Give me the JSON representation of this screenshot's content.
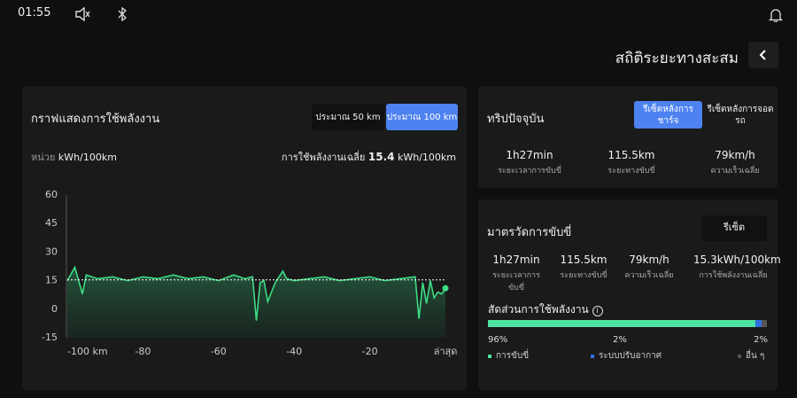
{
  "status_bar": {
    "time": "01:55"
  },
  "header": {
    "title": "สถิติระยะทางสะสม"
  },
  "chart_data": {
    "type": "line",
    "title": "กราฟแสดงการใช้พลังงาน",
    "range_options": [
      "ประมาณ 50 km",
      "ประมาณ 100 km"
    ],
    "unit_label": "หน่วย",
    "unit": "kWh/100km",
    "average_label": "การใช้พลังงานเฉลี่ย",
    "average": 15.4,
    "average_unit": "kWh/100km",
    "x": [
      -100,
      -98,
      -96,
      -95,
      -92,
      -88,
      -84,
      -80,
      -76,
      -72,
      -68,
      -64,
      -60,
      -56,
      -53,
      -51,
      -50,
      -49,
      -48,
      -47,
      -45,
      -43,
      -42,
      -40,
      -36,
      -32,
      -28,
      -24,
      -20,
      -16,
      -12,
      -8,
      -7,
      -6,
      -5,
      -4,
      -3,
      -2,
      -1,
      0
    ],
    "series": [
      {
        "color": "#3ddc84",
        "values": [
          15,
          22,
          8,
          18,
          16,
          17,
          15,
          17,
          16,
          18,
          16,
          17,
          15,
          18,
          16,
          17,
          -6,
          14,
          15,
          4,
          14,
          20,
          16,
          15,
          16,
          17,
          15,
          16,
          17,
          15,
          16,
          17,
          -5,
          14,
          3,
          15,
          6,
          9,
          8,
          11
        ]
      }
    ],
    "xlim": [
      -100,
      0
    ],
    "xticks": [
      {
        "value": -100,
        "label": "-100 km"
      },
      -80,
      -60,
      -40,
      -20,
      {
        "value": 0,
        "label": "ล่าสุด"
      }
    ],
    "ylim": [
      -15,
      60
    ],
    "yticks": [
      60,
      45,
      30,
      15,
      0,
      -15
    ]
  },
  "current_trip": {
    "title": "ทริปปัจจุบัน",
    "buttons": [
      "รีเซ็ตหลังการชาร์จ",
      "รีเซ็ตหลังการจอดรถ"
    ],
    "stats": [
      {
        "value": "1h27min",
        "label": "ระยะเวลาการขับขี่"
      },
      {
        "value": "115.5km",
        "label": "ระยะทางขับขี่"
      },
      {
        "value": "79km/h",
        "label": "ความเร็วเฉลี่ย"
      }
    ]
  },
  "driving_meter": {
    "title": "มาตรวัดการขับขี่",
    "button": "รีเซ็ต",
    "stats": [
      {
        "value": "1h27min",
        "label": "ระยะเวลาการขับขี่"
      },
      {
        "value": "115.5km",
        "label": "ระยะทางขับขี่"
      },
      {
        "value": "79km/h",
        "label": "ความเร็วเฉลี่ย"
      },
      {
        "value": "15.3kWh/100km",
        "label": "การใช้พลังงานเฉลี่ย"
      }
    ],
    "share": {
      "title": "สัดส่วนการใช้พลังงาน",
      "names": [
        "การขับขี่",
        "ระบบปรับอากาศ",
        "อื่น ๆ"
      ],
      "values": [
        96,
        2,
        2
      ],
      "value_labels": [
        "96%",
        "2%",
        "2%"
      ],
      "colors": [
        "#4de3a0",
        "#2f6fe0",
        "#555555"
      ]
    }
  }
}
